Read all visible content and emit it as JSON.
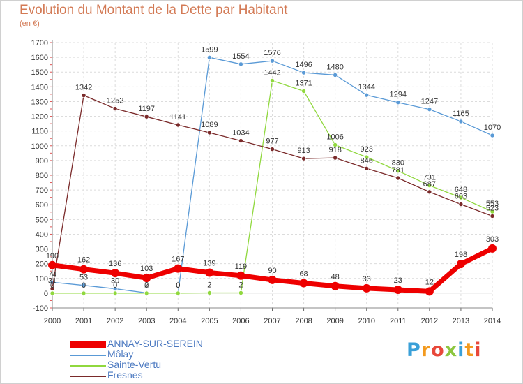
{
  "title": "Evolution du Montant de la Dette par Habitant",
  "unit": "(en €)",
  "logo": {
    "text": "Proxiti",
    "colors": [
      "#3aa0d8",
      "#f39a1e",
      "#e8483a",
      "#8cc63f",
      "#3aa0d8",
      "#f39a1e",
      "#e8483a"
    ]
  },
  "chart_data": {
    "type": "line",
    "title": "Evolution du Montant de la Dette par Habitant",
    "ylabel": "(en €)",
    "xlabel": "",
    "x": [
      "2000",
      "2001",
      "2002",
      "2003",
      "2004",
      "2005",
      "2006",
      "2007",
      "2008",
      "2009",
      "2010",
      "2011",
      "2012",
      "2013",
      "2014"
    ],
    "ylim": [
      -100,
      1700
    ],
    "yticks": [
      "-100",
      "0",
      "100",
      "200",
      "300",
      "400",
      "500",
      "600",
      "700",
      "800",
      "900",
      "1000",
      "1100",
      "1200",
      "1300",
      "1400",
      "1500",
      "1600",
      "1700"
    ],
    "grid": true,
    "legend": "bottom-left",
    "series": [
      {
        "name": "ANNAY-SUR-SEREIN",
        "color": "#ee0000",
        "bold": true,
        "values": [
          190,
          162,
          136,
          103,
          167,
          139,
          119,
          90,
          68,
          48,
          33,
          23,
          12,
          198,
          303
        ],
        "labels": [
          "190",
          "162",
          "136",
          "103",
          "167",
          "139",
          "119",
          "90",
          "68",
          "48",
          "33",
          "23",
          "12",
          "198",
          "303"
        ]
      },
      {
        "name": "Môlay",
        "color": "#5a9ad6",
        "bold": false,
        "values": [
          74,
          53,
          30,
          2,
          0,
          1599,
          1554,
          1576,
          1496,
          1480,
          1344,
          1294,
          1247,
          1165,
          1070
        ],
        "labels": [
          "74",
          "53",
          "30",
          "2",
          "0",
          "1599",
          "1554",
          "1576",
          "1496",
          "1480",
          "1344",
          "1294",
          "1247",
          "1165",
          "1070"
        ]
      },
      {
        "name": "Sainte-Vertu",
        "color": "#90d83e",
        "bold": false,
        "values": [
          0,
          0,
          0,
          0,
          0,
          2,
          2,
          1442,
          1371,
          1006,
          923,
          830,
          731,
          648,
          553
        ],
        "labels": [
          "0",
          "0",
          "0",
          "0",
          "0",
          "2",
          "2",
          "1442",
          "1371",
          "1006",
          "923",
          "830",
          "731",
          "648",
          "553"
        ]
      },
      {
        "name": "Fresnes",
        "color": "#7a2a2a",
        "bold": false,
        "values": [
          31,
          1342,
          1252,
          1197,
          1141,
          1089,
          1034,
          977,
          913,
          918,
          846,
          781,
          687,
          603,
          523
        ],
        "labels": [
          "31",
          "1342",
          "1252",
          "1197",
          "1141",
          "1089",
          "1034",
          "977",
          "913",
          "918",
          "846",
          "781",
          "687",
          "603",
          "523"
        ]
      }
    ]
  }
}
